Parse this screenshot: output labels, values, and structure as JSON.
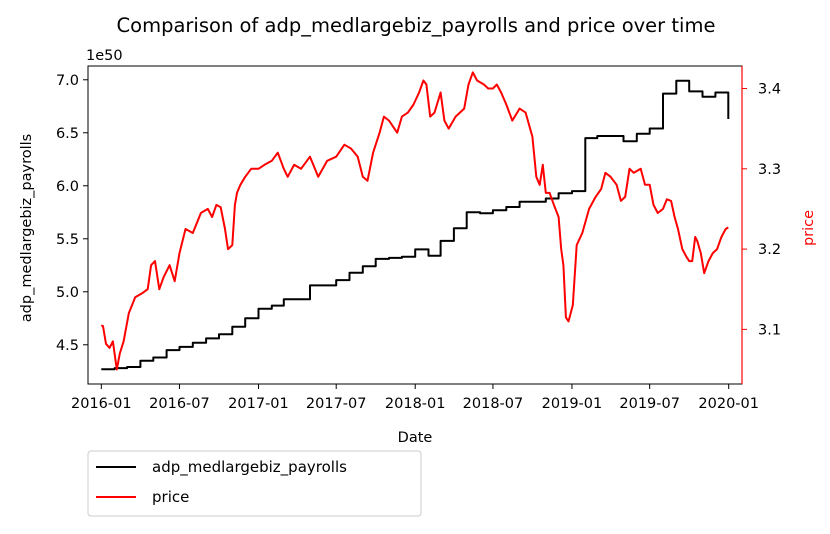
{
  "chart_data": {
    "type": "line",
    "title": "Comparison of adp_medlargebiz_payrolls and price over time",
    "xlabel": "Date",
    "ylabel_left": "adp_medlargebiz_payrolls",
    "ylabel_right": "price",
    "left_axis_offset_label": "1e50",
    "xlim": [
      "2015-12-01",
      "2020-02-01"
    ],
    "ylim_left": [
      4.13,
      7.13
    ],
    "ylim_right": [
      3.032,
      3.428
    ],
    "x_ticks": [
      "2016-01",
      "2016-07",
      "2017-01",
      "2017-07",
      "2018-01",
      "2018-07",
      "2019-01",
      "2019-07",
      "2020-01"
    ],
    "y_ticks_left": [
      "4.5",
      "5.0",
      "5.5",
      "6.0",
      "6.5",
      "7.0"
    ],
    "y_ticks_right": [
      "3.1",
      "3.2",
      "3.3",
      "3.4"
    ],
    "grid": false,
    "legend_placement": "below-left",
    "colors": {
      "series_1": "#000000",
      "series_2": "#ff0000",
      "right_axis": "#ff0000"
    },
    "series": [
      {
        "name": "adp_medlargebiz_payrolls",
        "axis": "left",
        "color": "#000000",
        "x": [
          "2016-01-01",
          "2016-02-01",
          "2016-03-01",
          "2016-04-01",
          "2016-05-01",
          "2016-06-01",
          "2016-07-01",
          "2016-08-01",
          "2016-09-01",
          "2016-10-01",
          "2016-11-01",
          "2016-12-01",
          "2017-01-01",
          "2017-02-01",
          "2017-03-01",
          "2017-04-01",
          "2017-05-01",
          "2017-06-01",
          "2017-07-01",
          "2017-08-01",
          "2017-09-01",
          "2017-10-01",
          "2017-11-01",
          "2017-12-01",
          "2018-01-01",
          "2018-02-01",
          "2018-03-01",
          "2018-04-01",
          "2018-05-01",
          "2018-06-01",
          "2018-07-01",
          "2018-08-01",
          "2018-09-01",
          "2018-10-01",
          "2018-11-01",
          "2018-12-01",
          "2019-01-01",
          "2019-02-01",
          "2019-03-01",
          "2019-04-01",
          "2019-05-01",
          "2019-06-01",
          "2019-07-01",
          "2019-08-01",
          "2019-09-01",
          "2019-10-01",
          "2019-11-01",
          "2019-12-01",
          "2019-12-31"
        ],
        "values": [
          4.27,
          4.28,
          4.29,
          4.35,
          4.38,
          4.45,
          4.48,
          4.52,
          4.56,
          4.6,
          4.67,
          4.75,
          4.84,
          4.87,
          4.93,
          4.93,
          5.06,
          5.06,
          5.11,
          5.18,
          5.24,
          5.31,
          5.32,
          5.33,
          5.4,
          5.34,
          5.48,
          5.6,
          5.75,
          5.74,
          5.77,
          5.8,
          5.85,
          5.85,
          5.88,
          5.93,
          5.95,
          6.45,
          6.47,
          6.47,
          6.42,
          6.49,
          6.54,
          6.87,
          6.99,
          6.89,
          6.84,
          6.88,
          6.63
        ]
      },
      {
        "name": "price",
        "axis": "right",
        "color": "#ff0000",
        "x": [
          "2016-01-01",
          "2016-01-05",
          "2016-01-12",
          "2016-01-20",
          "2016-01-28",
          "2016-02-06",
          "2016-02-13",
          "2016-02-22",
          "2016-03-05",
          "2016-03-20",
          "2016-04-05",
          "2016-04-18",
          "2016-04-26",
          "2016-05-05",
          "2016-05-15",
          "2016-05-25",
          "2016-06-08",
          "2016-06-20",
          "2016-07-01",
          "2016-07-15",
          "2016-08-01",
          "2016-08-20",
          "2016-09-05",
          "2016-09-15",
          "2016-09-25",
          "2016-10-05",
          "2016-10-15",
          "2016-10-22",
          "2016-11-01",
          "2016-11-07",
          "2016-11-12",
          "2016-11-20",
          "2016-12-01",
          "2016-12-15",
          "2017-01-01",
          "2017-01-15",
          "2017-02-01",
          "2017-02-15",
          "2017-03-01",
          "2017-03-10",
          "2017-03-25",
          "2017-04-10",
          "2017-05-01",
          "2017-05-20",
          "2017-06-10",
          "2017-07-01",
          "2017-07-20",
          "2017-08-05",
          "2017-08-20",
          "2017-09-01",
          "2017-09-12",
          "2017-09-25",
          "2017-10-10",
          "2017-10-20",
          "2017-11-01",
          "2017-11-20",
          "2017-12-01",
          "2017-12-15",
          "2017-12-28",
          "2018-01-10",
          "2018-01-20",
          "2018-01-27",
          "2018-02-05",
          "2018-02-15",
          "2018-03-01",
          "2018-03-10",
          "2018-03-20",
          "2018-04-05",
          "2018-04-15",
          "2018-04-25",
          "2018-05-05",
          "2018-05-15",
          "2018-05-25",
          "2018-06-10",
          "2018-06-20",
          "2018-07-01",
          "2018-07-10",
          "2018-07-20",
          "2018-08-01",
          "2018-08-15",
          "2018-09-01",
          "2018-09-15",
          "2018-10-01",
          "2018-10-10",
          "2018-10-18",
          "2018-10-25",
          "2018-11-01",
          "2018-11-10",
          "2018-11-20",
          "2018-12-01",
          "2018-12-07",
          "2018-12-12",
          "2018-12-18",
          "2018-12-24",
          "2019-01-03",
          "2019-01-12",
          "2019-01-25",
          "2019-02-10",
          "2019-02-25",
          "2019-03-10",
          "2019-03-20",
          "2019-04-01",
          "2019-04-15",
          "2019-04-25",
          "2019-05-05",
          "2019-05-15",
          "2019-05-25",
          "2019-06-10",
          "2019-06-20",
          "2019-07-01",
          "2019-07-10",
          "2019-07-20",
          "2019-08-01",
          "2019-08-10",
          "2019-08-20",
          "2019-08-28",
          "2019-09-05",
          "2019-09-15",
          "2019-09-25",
          "2019-10-01",
          "2019-10-08",
          "2019-10-15",
          "2019-10-20",
          "2019-10-28",
          "2019-11-05",
          "2019-11-15",
          "2019-11-25",
          "2019-12-05",
          "2019-12-15",
          "2019-12-25",
          "2019-12-31"
        ],
        "values": [
          3.105,
          3.104,
          3.082,
          3.077,
          3.085,
          3.05,
          3.07,
          3.085,
          3.12,
          3.14,
          3.145,
          3.15,
          3.18,
          3.185,
          3.15,
          3.165,
          3.18,
          3.16,
          3.195,
          3.225,
          3.22,
          3.245,
          3.25,
          3.24,
          3.255,
          3.252,
          3.225,
          3.2,
          3.205,
          3.255,
          3.27,
          3.28,
          3.29,
          3.3,
          3.3,
          3.305,
          3.31,
          3.32,
          3.3,
          3.29,
          3.305,
          3.3,
          3.315,
          3.29,
          3.31,
          3.315,
          3.33,
          3.325,
          3.315,
          3.29,
          3.285,
          3.32,
          3.345,
          3.365,
          3.36,
          3.345,
          3.365,
          3.37,
          3.38,
          3.395,
          3.41,
          3.405,
          3.365,
          3.37,
          3.395,
          3.36,
          3.35,
          3.365,
          3.37,
          3.375,
          3.405,
          3.42,
          3.41,
          3.405,
          3.4,
          3.4,
          3.405,
          3.395,
          3.38,
          3.36,
          3.375,
          3.37,
          3.34,
          3.29,
          3.28,
          3.305,
          3.27,
          3.27,
          3.255,
          3.24,
          3.2,
          3.18,
          3.115,
          3.11,
          3.13,
          3.205,
          3.22,
          3.25,
          3.265,
          3.275,
          3.295,
          3.29,
          3.28,
          3.26,
          3.265,
          3.3,
          3.295,
          3.3,
          3.28,
          3.28,
          3.255,
          3.245,
          3.25,
          3.262,
          3.26,
          3.24,
          3.225,
          3.2,
          3.19,
          3.185,
          3.185,
          3.215,
          3.21,
          3.195,
          3.17,
          3.185,
          3.195,
          3.2,
          3.215,
          3.225,
          3.227
        ]
      }
    ]
  }
}
